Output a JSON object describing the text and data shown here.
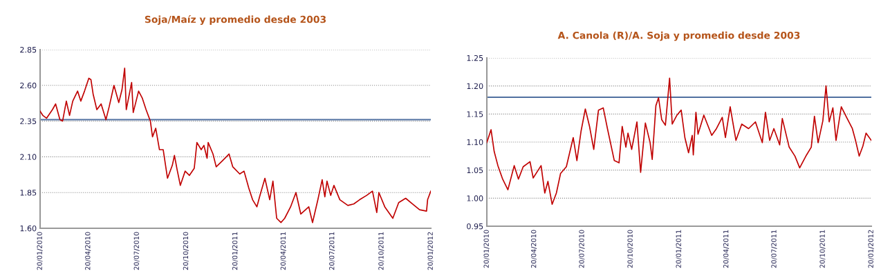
{
  "chart_data": [
    {
      "type": "line",
      "title": "Soja/Maíz y promedio desde 2003",
      "grid": "y",
      "marker": "none",
      "line_style": "solid",
      "x": [
        "2010-01-20",
        "2010-01-25",
        "2010-02-01",
        "2010-02-12",
        "2010-02-18",
        "2010-02-26",
        "2010-03-03",
        "2010-03-10",
        "2010-03-16",
        "2010-03-22",
        "2010-03-31",
        "2010-04-06",
        "2010-04-13",
        "2010-04-21",
        "2010-04-25",
        "2010-04-29",
        "2010-05-06",
        "2010-05-14",
        "2010-05-23",
        "2010-05-29",
        "2010-06-07",
        "2010-06-16",
        "2010-06-22",
        "2010-06-27",
        "2010-06-30",
        "2010-07-10",
        "2010-07-13",
        "2010-07-23",
        "2010-07-30",
        "2010-08-06",
        "2010-08-14",
        "2010-08-18",
        "2010-08-24",
        "2010-08-31",
        "2010-09-07",
        "2010-09-15",
        "2010-09-24",
        "2010-09-28",
        "2010-10-03",
        "2010-10-09",
        "2010-10-18",
        "2010-10-26",
        "2010-11-04",
        "2010-11-09",
        "2010-11-17",
        "2010-11-22",
        "2010-11-28",
        "2010-11-30",
        "2010-12-09",
        "2010-12-15",
        "2010-12-26",
        "2011-01-03",
        "2011-01-08",
        "2011-01-15",
        "2011-01-28",
        "2011-02-05",
        "2011-02-14",
        "2011-02-21",
        "2011-03-01",
        "2011-03-06",
        "2011-03-16",
        "2011-03-25",
        "2011-03-31",
        "2011-04-07",
        "2011-04-15",
        "2011-04-22",
        "2011-05-03",
        "2011-05-13",
        "2011-05-22",
        "2011-06-06",
        "2011-06-13",
        "2011-06-23",
        "2011-07-01",
        "2011-07-06",
        "2011-07-10",
        "2011-07-17",
        "2011-07-23",
        "2011-08-03",
        "2011-08-18",
        "2011-08-29",
        "2011-09-09",
        "2011-09-22",
        "2011-10-03",
        "2011-10-11",
        "2011-10-15",
        "2011-10-26",
        "2011-11-10",
        "2011-11-21",
        "2011-12-04",
        "2011-12-17",
        "2011-12-30",
        "2012-01-12",
        "2012-01-14",
        "2012-01-20"
      ],
      "series": [
        {
          "color": "#c00000",
          "values": [
            2.42,
            2.39,
            2.37,
            2.43,
            2.47,
            2.36,
            2.35,
            2.49,
            2.39,
            2.49,
            2.56,
            2.49,
            2.56,
            2.65,
            2.64,
            2.54,
            2.43,
            2.47,
            2.36,
            2.45,
            2.6,
            2.48,
            2.57,
            2.72,
            2.43,
            2.62,
            2.41,
            2.56,
            2.51,
            2.43,
            2.35,
            2.24,
            2.3,
            2.15,
            2.15,
            1.95,
            2.04,
            2.11,
            2.01,
            1.9,
            2.0,
            1.97,
            2.02,
            2.2,
            2.15,
            2.18,
            2.09,
            2.2,
            2.12,
            2.03,
            2.07,
            2.1,
            2.12,
            2.03,
            1.98,
            2.0,
            1.88,
            1.8,
            1.75,
            1.82,
            1.95,
            1.8,
            1.93,
            1.67,
            1.64,
            1.67,
            1.75,
            1.85,
            1.7,
            1.75,
            1.64,
            1.8,
            1.94,
            1.82,
            1.93,
            1.83,
            1.9,
            1.8,
            1.76,
            1.77,
            1.8,
            1.83,
            1.86,
            1.71,
            1.85,
            1.75,
            1.67,
            1.78,
            1.81,
            1.77,
            1.73,
            1.72,
            1.8,
            1.86
          ]
        }
      ],
      "ref_lines": [
        {
          "axis": "y",
          "value": 2.36,
          "color": "#4f6f9f"
        }
      ],
      "xlim": [
        "2010-01-20",
        "2012-01-20"
      ],
      "xticks": [
        {
          "value": "2010-01-20",
          "label": "20/01/2010"
        },
        {
          "value": "2010-04-20",
          "label": "20/04/2010"
        },
        {
          "value": "2010-07-20",
          "label": "20/07/2010"
        },
        {
          "value": "2010-10-20",
          "label": "20/10/2010"
        },
        {
          "value": "2011-01-20",
          "label": "20/01/2011"
        },
        {
          "value": "2011-04-20",
          "label": "20/04/2011"
        },
        {
          "value": "2011-07-20",
          "label": "20/07/2011"
        },
        {
          "value": "2011-10-20",
          "label": "20/10/2011"
        },
        {
          "value": "2012-01-20",
          "label": "20/01/2012"
        }
      ],
      "ylim": [
        1.6,
        2.85
      ],
      "yticks": [
        {
          "value": 1.6,
          "label": "1.60"
        },
        {
          "value": 1.85,
          "label": "1.85"
        },
        {
          "value": 2.1,
          "label": "2.10"
        },
        {
          "value": 2.35,
          "label": "2.35"
        },
        {
          "value": 2.6,
          "label": "2.60"
        },
        {
          "value": 2.85,
          "label": "2.85"
        }
      ]
    },
    {
      "type": "line",
      "title": "A. Canola (R)/A. Soja y promedio desde 2003",
      "grid": "y",
      "marker": "none",
      "line_style": "solid",
      "x": [
        "2010-01-20",
        "2010-01-28",
        "2010-02-03",
        "2010-02-10",
        "2010-02-19",
        "2010-03-01",
        "2010-03-13",
        "2010-03-21",
        "2010-03-30",
        "2010-04-12",
        "2010-04-18",
        "2010-05-03",
        "2010-05-10",
        "2010-05-16",
        "2010-05-24",
        "2010-06-01",
        "2010-06-09",
        "2010-06-20",
        "2010-07-03",
        "2010-07-10",
        "2010-07-18",
        "2010-07-26",
        "2010-08-03",
        "2010-08-11",
        "2010-08-20",
        "2010-08-29",
        "2010-09-06",
        "2010-09-19",
        "2010-09-28",
        "2010-10-04",
        "2010-10-11",
        "2010-10-15",
        "2010-10-22",
        "2010-11-01",
        "2010-11-08",
        "2010-11-17",
        "2010-11-26",
        "2010-11-30",
        "2010-12-07",
        "2010-12-12",
        "2010-12-18",
        "2010-12-25",
        "2011-01-02",
        "2011-01-07",
        "2011-01-16",
        "2011-01-24",
        "2011-01-31",
        "2011-02-07",
        "2011-02-14",
        "2011-02-16",
        "2011-02-21",
        "2011-02-25",
        "2011-03-08",
        "2011-03-23",
        "2011-04-01",
        "2011-04-12",
        "2011-04-18",
        "2011-04-27",
        "2011-05-08",
        "2011-05-19",
        "2011-06-01",
        "2011-06-14",
        "2011-06-27",
        "2011-07-03",
        "2011-07-11",
        "2011-07-19",
        "2011-07-30",
        "2011-08-04",
        "2011-08-17",
        "2011-08-28",
        "2011-09-06",
        "2011-09-19",
        "2011-09-28",
        "2011-10-04",
        "2011-10-11",
        "2011-10-20",
        "2011-10-26",
        "2011-11-01",
        "2011-11-08",
        "2011-11-14",
        "2011-11-24",
        "2011-12-04",
        "2011-12-15",
        "2011-12-21",
        "2011-12-28",
        "2012-01-04",
        "2012-01-10",
        "2012-01-20"
      ],
      "series": [
        {
          "color": "#c00000",
          "values": [
            1.099,
            1.122,
            1.083,
            1.058,
            1.034,
            1.015,
            1.058,
            1.034,
            1.056,
            1.065,
            1.036,
            1.058,
            1.009,
            1.03,
            0.989,
            1.009,
            1.044,
            1.056,
            1.108,
            1.067,
            1.12,
            1.159,
            1.128,
            1.087,
            1.157,
            1.161,
            1.124,
            1.067,
            1.063,
            1.128,
            1.091,
            1.116,
            1.087,
            1.136,
            1.046,
            1.134,
            1.099,
            1.069,
            1.165,
            1.179,
            1.14,
            1.13,
            1.214,
            1.132,
            1.148,
            1.157,
            1.108,
            1.081,
            1.112,
            1.077,
            1.153,
            1.114,
            1.148,
            1.112,
            1.124,
            1.144,
            1.108,
            1.163,
            1.103,
            1.132,
            1.124,
            1.136,
            1.099,
            1.153,
            1.103,
            1.124,
            1.095,
            1.142,
            1.091,
            1.075,
            1.054,
            1.077,
            1.091,
            1.146,
            1.099,
            1.138,
            1.2,
            1.136,
            1.161,
            1.103,
            1.163,
            1.144,
            1.124,
            1.103,
            1.075,
            1.093,
            1.116,
            1.103
          ]
        }
      ],
      "ref_lines": [
        {
          "axis": "y",
          "value": 1.18,
          "color": "#4f6f9f"
        }
      ],
      "xlim": [
        "2010-01-20",
        "2012-01-20"
      ],
      "xticks": [
        {
          "value": "2010-01-20",
          "label": "20/01/2010"
        },
        {
          "value": "2010-04-20",
          "label": "20/04/2010"
        },
        {
          "value": "2010-07-20",
          "label": "20/07/2010"
        },
        {
          "value": "2010-10-20",
          "label": "20/10/2010"
        },
        {
          "value": "2011-01-20",
          "label": "20/01/2011"
        },
        {
          "value": "2011-04-20",
          "label": "20/04/2011"
        },
        {
          "value": "2011-07-20",
          "label": "20/07/2011"
        },
        {
          "value": "2011-10-20",
          "label": "20/10/2011"
        },
        {
          "value": "2012-01-20",
          "label": "20/01/2012"
        }
      ],
      "ylim": [
        0.95,
        1.25
      ],
      "yticks": [
        {
          "value": 0.95,
          "label": "0.95"
        },
        {
          "value": 1.0,
          "label": "1.00"
        },
        {
          "value": 1.05,
          "label": "1.05"
        },
        {
          "value": 1.1,
          "label": "1.10"
        },
        {
          "value": 1.15,
          "label": "1.15"
        },
        {
          "value": 1.2,
          "label": "1.20"
        },
        {
          "value": 1.25,
          "label": "1.25"
        }
      ]
    }
  ]
}
